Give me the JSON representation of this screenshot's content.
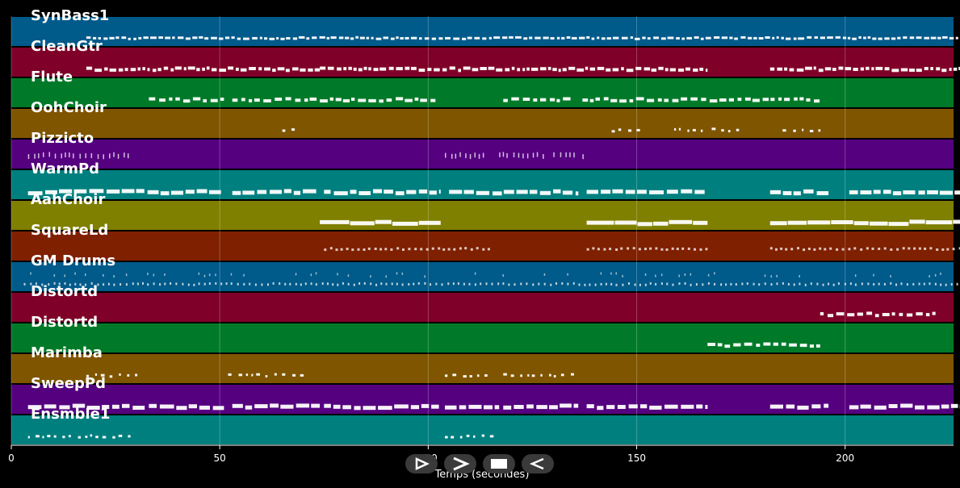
{
  "chart_data": {
    "type": "piano-roll",
    "xlabel": "Temps (secondes)",
    "xlim": [
      0,
      226
    ],
    "xticks": [
      0,
      50,
      100,
      150,
      200
    ],
    "grid": true,
    "tracks": [
      {
        "name": "SynBass1",
        "color": "#005a8a",
        "segments": [
          [
            18,
            228
          ]
        ],
        "style": "dense"
      },
      {
        "name": "CleanGtr",
        "color": "#7f0028",
        "segments": [
          [
            18,
            74
          ],
          [
            74,
            167
          ],
          [
            182,
            228
          ]
        ],
        "style": "mixed"
      },
      {
        "name": "Flute",
        "color": "#007a28",
        "segments": [
          [
            33,
            51
          ],
          [
            53,
            74
          ],
          [
            74,
            102
          ],
          [
            118,
            135
          ],
          [
            137,
            194
          ]
        ],
        "style": "notes"
      },
      {
        "name": "OohChoir",
        "color": "#7f5500",
        "segments": [
          [
            65,
            68
          ],
          [
            144,
            151
          ],
          [
            159,
            166
          ],
          [
            168,
            175
          ],
          [
            185,
            195
          ]
        ],
        "style": "sparse"
      },
      {
        "name": "Pizzicto",
        "color": "#55007f",
        "segments": [
          [
            4,
            29
          ],
          [
            104,
            114
          ],
          [
            117,
            128
          ],
          [
            130,
            136
          ],
          [
            137,
            138
          ]
        ],
        "style": "pluck"
      },
      {
        "name": "WarmPd",
        "color": "#007f7f",
        "segments": [
          [
            4,
            51
          ],
          [
            53,
            74
          ],
          [
            75,
            103
          ],
          [
            105,
            136
          ],
          [
            138,
            167
          ],
          [
            182,
            196
          ],
          [
            201,
            228
          ]
        ],
        "style": "blocks"
      },
      {
        "name": "AahChoir",
        "color": "#7f7f00",
        "segments": [
          [
            74,
            103
          ],
          [
            138,
            167
          ],
          [
            182,
            228
          ]
        ],
        "style": "long"
      },
      {
        "name": "SquareLd",
        "color": "#7f2000",
        "segments": [
          [
            75,
            115
          ],
          [
            138,
            167
          ],
          [
            182,
            228
          ]
        ],
        "style": "chev"
      },
      {
        "name": "GM Drums",
        "color": "#005a8a",
        "segments": [
          [
            3,
            228
          ]
        ],
        "style": "drums"
      },
      {
        "name": "Distortd",
        "color": "#7f0028",
        "segments": [
          [
            194,
            222
          ]
        ],
        "style": "notes"
      },
      {
        "name": "Distortd",
        "color": "#007a28",
        "segments": [
          [
            167,
            194
          ]
        ],
        "style": "notes"
      },
      {
        "name": "Marimba",
        "color": "#7f5500",
        "segments": [
          [
            18,
            32
          ],
          [
            52,
            71
          ],
          [
            104,
            116
          ],
          [
            118,
            135
          ]
        ],
        "style": "sparse"
      },
      {
        "name": "SweepPd",
        "color": "#55007f",
        "segments": [
          [
            4,
            32
          ],
          [
            33,
            51
          ],
          [
            53,
            74
          ],
          [
            75,
            103
          ],
          [
            104,
            117
          ],
          [
            118,
            136
          ],
          [
            138,
            167
          ],
          [
            182,
            196
          ],
          [
            201,
            228
          ]
        ],
        "style": "blocks"
      },
      {
        "name": "Ensmble1",
        "color": "#007f7f",
        "segments": [
          [
            4,
            30
          ],
          [
            104,
            117
          ]
        ],
        "style": "sparse"
      }
    ]
  },
  "controls": {
    "play_label": "play",
    "forward_label": "forward",
    "stop_label": "stop",
    "rewind_label": "rewind"
  }
}
